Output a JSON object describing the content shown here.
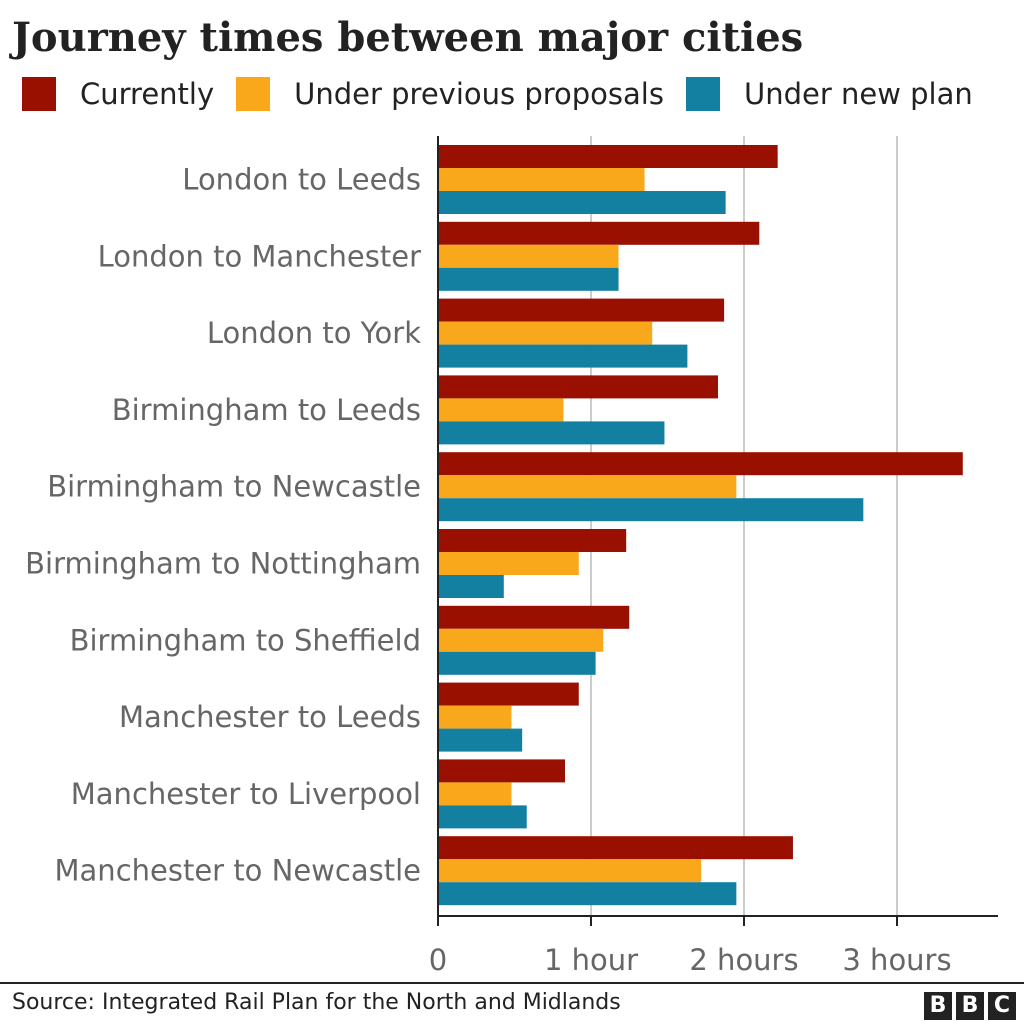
{
  "header": {
    "title": "Journey times between major cities"
  },
  "legend": {
    "items": [
      {
        "label": "Currently",
        "color": "#990f00"
      },
      {
        "label": "Under previous proposals",
        "color": "#f9a81c"
      },
      {
        "label": "Under new plan",
        "color": "#1380a1"
      }
    ]
  },
  "chart_data": {
    "type": "bar",
    "orientation": "horizontal",
    "title": "Journey times between major cities",
    "xlabel": "",
    "ylabel": "",
    "unit": "hours",
    "xlim": [
      0,
      3.67
    ],
    "x_ticks": [
      {
        "value": 0,
        "label": "0"
      },
      {
        "value": 1,
        "label": "1 hour"
      },
      {
        "value": 2,
        "label": "2 hours"
      },
      {
        "value": 3,
        "label": "3 hours"
      }
    ],
    "grid": true,
    "legend_position": "top",
    "categories": [
      "London to Leeds",
      "London to Manchester",
      "London to York",
      "Birmingham to Leeds",
      "Birmingham to Newcastle",
      "Birmingham to Nottingham",
      "Birmingham to Sheffield",
      "Manchester to Leeds",
      "Manchester to Liverpool",
      "Manchester to Newcastle"
    ],
    "series": [
      {
        "name": "Currently",
        "color": "#990f00",
        "values": [
          2.22,
          2.1,
          1.87,
          1.83,
          3.43,
          1.23,
          1.25,
          0.92,
          0.83,
          2.32
        ]
      },
      {
        "name": "Under previous proposals",
        "color": "#f9a81c",
        "values": [
          1.35,
          1.18,
          1.4,
          0.82,
          1.95,
          0.92,
          1.08,
          0.48,
          0.48,
          1.72
        ]
      },
      {
        "name": "Under new plan",
        "color": "#1380a1",
        "values": [
          1.88,
          1.18,
          1.63,
          1.48,
          2.78,
          0.43,
          1.03,
          0.55,
          0.58,
          1.95
        ]
      }
    ]
  },
  "footer": {
    "source": "Source: Integrated Rail Plan for the North and Midlands",
    "logo_letters": [
      "B",
      "B",
      "C"
    ]
  }
}
